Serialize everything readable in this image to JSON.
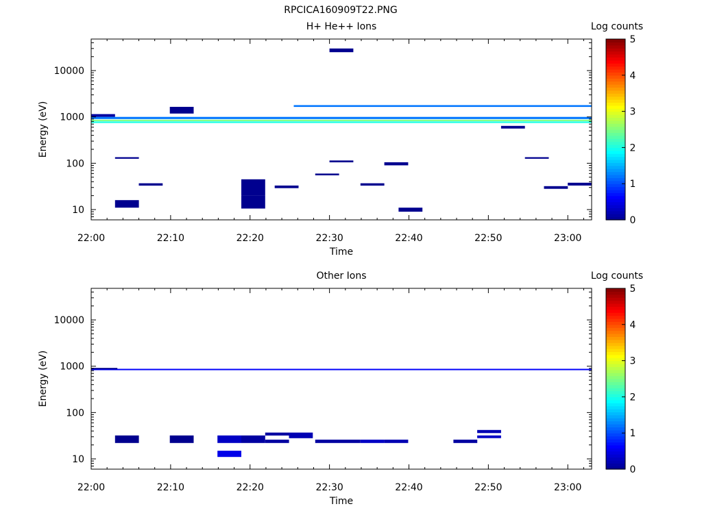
{
  "figure": {
    "filename": "RPCICA160909T22.PNG"
  },
  "colormap": [
    "#00008f",
    "#0000ff",
    "#0080ff",
    "#00ffff",
    "#80ff80",
    "#ffff00",
    "#ff8000",
    "#ff0000",
    "#800000"
  ],
  "chart_data": [
    {
      "type": "heatmap",
      "title": "H+ He++ Ions",
      "xlabel": "Time",
      "ylabel": "Energy (eV)",
      "x_range": [
        "22:00",
        "23:03"
      ],
      "y_range": [
        6,
        48000
      ],
      "y_scale": "log",
      "x_ticks": [
        "22:00",
        "22:10",
        "22:20",
        "22:30",
        "22:40",
        "22:50",
        "23:00"
      ],
      "y_ticks": [
        "10",
        "100",
        "1000",
        "10000"
      ],
      "colorbar": {
        "label": "Log counts",
        "range": [
          0,
          5
        ],
        "ticks": [
          "0",
          "1",
          "2",
          "3",
          "4",
          "5"
        ]
      },
      "cells": [
        {
          "t": [
            0,
            1
          ],
          "e": [
            1000,
            1150
          ],
          "v": 0.1
        },
        {
          "t": [
            0,
            21
          ],
          "e": [
            810,
            870
          ],
          "v": 2.5
        },
        {
          "t": [
            0,
            21
          ],
          "e": [
            740,
            800
          ],
          "v": 2.0
        },
        {
          "t": [
            0,
            21
          ],
          "e": [
            900,
            1000
          ],
          "v": 1.2
        },
        {
          "t": [
            8.5,
            21
          ],
          "e": [
            1650,
            1800
          ],
          "v": 1.2
        },
        {
          "t": [
            1,
            2
          ],
          "e": [
            11,
            16
          ],
          "v": 0
        },
        {
          "t": [
            6.3,
            7.3
          ],
          "e": [
            20,
            45
          ],
          "v": 0
        },
        {
          "t": [
            12.9,
            13.9
          ],
          "e": [
            9,
            11
          ],
          "v": 0
        },
        {
          "t": [
            6.3,
            7.3
          ],
          "e": [
            10.5,
            20
          ],
          "v": 0
        },
        {
          "t": [
            2,
            3
          ],
          "e": [
            33,
            37
          ],
          "v": 0
        },
        {
          "t": [
            7.7,
            8.7
          ],
          "e": [
            29,
            33
          ],
          "v": 0
        },
        {
          "t": [
            11.3,
            12.3
          ],
          "e": [
            33,
            37
          ],
          "v": 0
        },
        {
          "t": [
            19,
            20
          ],
          "e": [
            28,
            32
          ],
          "v": 0
        },
        {
          "t": [
            20,
            21
          ],
          "e": [
            33,
            38
          ],
          "v": 0
        },
        {
          "t": [
            12.3,
            13.3
          ],
          "e": [
            90,
            105
          ],
          "v": 0
        },
        {
          "t": [
            1,
            2
          ],
          "e": [
            125,
            135
          ],
          "v": 0
        },
        {
          "t": [
            10,
            11
          ],
          "e": [
            105,
            115
          ],
          "v": 0
        },
        {
          "t": [
            9.4,
            10.4
          ],
          "e": [
            55,
            60
          ],
          "v": 0
        },
        {
          "t": [
            18.2,
            19.2
          ],
          "e": [
            125,
            135
          ],
          "v": 0
        },
        {
          "t": [
            3.3,
            4.3
          ],
          "e": [
            1180,
            1650
          ],
          "v": 0
        },
        {
          "t": [
            10,
            11
          ],
          "e": [
            25000,
            30000
          ],
          "v": 0
        },
        {
          "t": [
            17.2,
            18.2
          ],
          "e": [
            560,
            640
          ],
          "v": 0
        }
      ]
    },
    {
      "type": "heatmap",
      "title": "Other Ions",
      "xlabel": "Time",
      "ylabel": "Energy (eV)",
      "x_range": [
        "22:00",
        "23:03"
      ],
      "y_range": [
        6,
        48000
      ],
      "y_scale": "log",
      "x_ticks": [
        "22:00",
        "22:10",
        "22:20",
        "22:30",
        "22:40",
        "22:50",
        "23:00"
      ],
      "y_ticks": [
        "10",
        "100",
        "1000",
        "10000"
      ],
      "colorbar": {
        "label": "Log counts",
        "range": [
          0,
          5
        ],
        "ticks": [
          "0",
          "1",
          "2",
          "3",
          "4",
          "5"
        ]
      },
      "cells": [
        {
          "t": [
            0,
            21
          ],
          "e": [
            830,
            880
          ],
          "v": 0.6
        },
        {
          "t": [
            0,
            1.1
          ],
          "e": [
            860,
            920
          ],
          "v": 0
        },
        {
          "t": [
            1,
            2
          ],
          "e": [
            22,
            32
          ],
          "v": 0
        },
        {
          "t": [
            3.3,
            4.3
          ],
          "e": [
            22,
            32
          ],
          "v": 0
        },
        {
          "t": [
            5.3,
            6.3
          ],
          "e": [
            22,
            32
          ],
          "v": 0.3
        },
        {
          "t": [
            6.3,
            7.3
          ],
          "e": [
            22,
            32
          ],
          "v": 0.1
        },
        {
          "t": [
            5.3,
            6.3
          ],
          "e": [
            11,
            15
          ],
          "v": 0.5
        },
        {
          "t": [
            7.3,
            8.3
          ],
          "e": [
            22,
            26
          ],
          "v": 0.1
        },
        {
          "t": [
            7.3,
            8.3
          ],
          "e": [
            32,
            37
          ],
          "v": 0.1
        },
        {
          "t": [
            8.3,
            9.3
          ],
          "e": [
            28,
            37
          ],
          "v": 0.2
        },
        {
          "t": [
            9.4,
            11.3
          ],
          "e": [
            22,
            26
          ],
          "v": 0.1
        },
        {
          "t": [
            11.3,
            12.3
          ],
          "e": [
            22,
            26
          ],
          "v": 0.3
        },
        {
          "t": [
            12.3,
            13.3
          ],
          "e": [
            22,
            26
          ],
          "v": 0.2
        },
        {
          "t": [
            15.2,
            16.2
          ],
          "e": [
            22,
            26
          ],
          "v": 0.1
        },
        {
          "t": [
            16.2,
            17.2
          ],
          "e": [
            28,
            32
          ],
          "v": 0.3
        },
        {
          "t": [
            16.2,
            17.2
          ],
          "e": [
            36,
            42
          ],
          "v": 0.2
        }
      ]
    }
  ]
}
